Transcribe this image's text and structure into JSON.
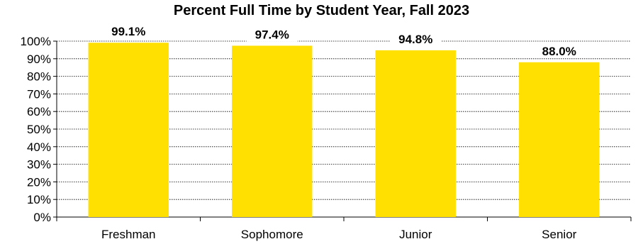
{
  "chart_data": {
    "type": "bar",
    "title": "Percent Full Time by Student Year, Fall 2023",
    "categories": [
      "Freshman",
      "Sophomore",
      "Junior",
      "Senior"
    ],
    "values": [
      99.1,
      97.4,
      94.8,
      88.0
    ],
    "data_labels": [
      "99.1%",
      "97.4%",
      "94.8%",
      "88.0%"
    ],
    "ylim": [
      0,
      100
    ],
    "yticks": [
      0,
      10,
      20,
      30,
      40,
      50,
      60,
      70,
      80,
      90,
      100
    ],
    "ytick_labels": [
      "0%",
      "10%",
      "20%",
      "30%",
      "40%",
      "50%",
      "60%",
      "70%",
      "80%",
      "90%",
      "100%"
    ],
    "xlabel": "",
    "ylabel": "",
    "grid": true,
    "bar_color": "#FFE000"
  }
}
